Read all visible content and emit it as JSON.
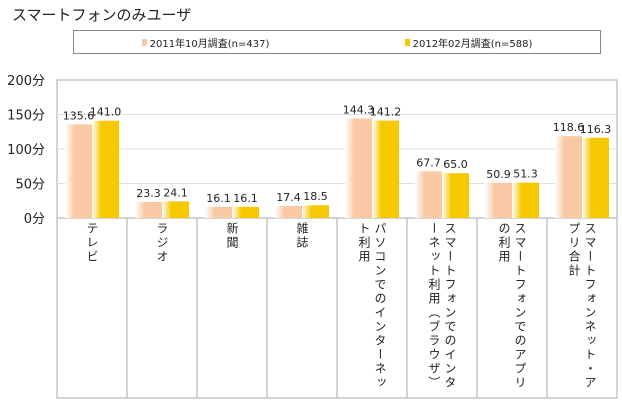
{
  "chart_data": {
    "type": "bar",
    "title": "スマートフォンのみユーザ",
    "categories": [
      "テレビ",
      "ラジオ",
      "新聞",
      "雑誌",
      "パソコンでのインターネット利用",
      "スマートフォンでのインターネット利用（ブラウザ）",
      "スマートフォンでのアプリの利用",
      "スマートフォンネット・アプリ合計"
    ],
    "series": [
      {
        "name": "2011年10月調査(n=437)",
        "color": "#f8c9a4",
        "values": [
          135.6,
          23.3,
          16.1,
          17.4,
          144.3,
          67.7,
          50.9,
          118.6
        ]
      },
      {
        "name": "2012年02月調査(n=588)",
        "color": "#f5c800",
        "values": [
          141.0,
          24.1,
          16.1,
          18.5,
          141.2,
          65.0,
          51.3,
          116.3
        ]
      }
    ],
    "yticks": [
      "0分",
      "50分",
      "100分",
      "150分",
      "200分"
    ],
    "ylim": [
      0,
      200
    ],
    "legend": "top"
  }
}
